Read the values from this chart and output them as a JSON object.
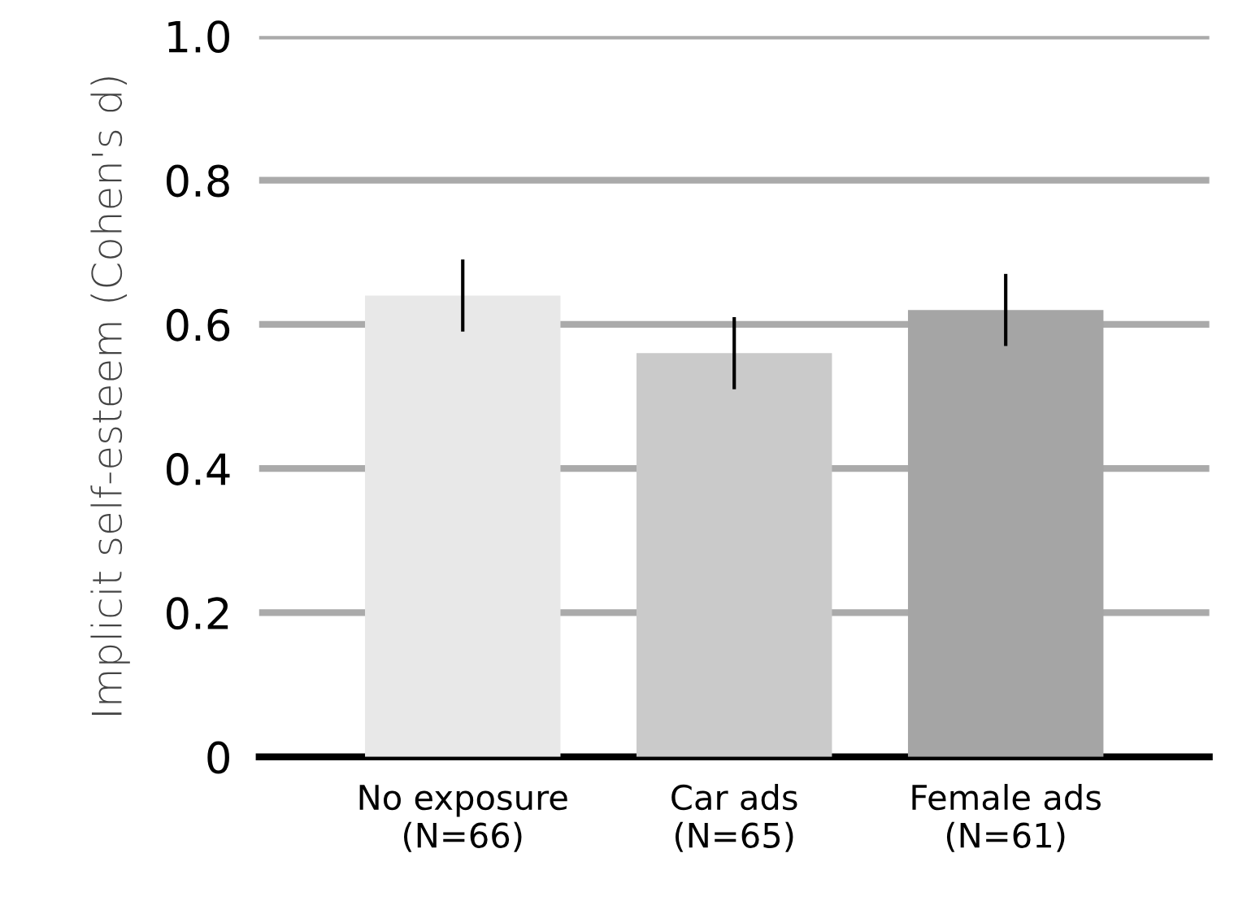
{
  "chart_data": {
    "type": "bar",
    "ylabel": "Implicit self-esteem (Cohen's d)",
    "categories": [
      "No exposure\n(N=66)",
      "Car ads\n(N=65)",
      "Female ads\n(N=61)"
    ],
    "values": [
      0.64,
      0.56,
      0.62
    ],
    "errors": [
      0.05,
      0.05,
      0.05
    ],
    "colors": [
      "#e8e8e8",
      "#cacaca",
      "#a5a5a5"
    ],
    "ylim": [
      0,
      1.0
    ],
    "yticks": [
      {
        "value": 0,
        "label": "0"
      },
      0.2,
      0.4,
      0.6,
      0.8,
      {
        "value": 1.0,
        "label": "1.0"
      }
    ],
    "grid": "y"
  }
}
